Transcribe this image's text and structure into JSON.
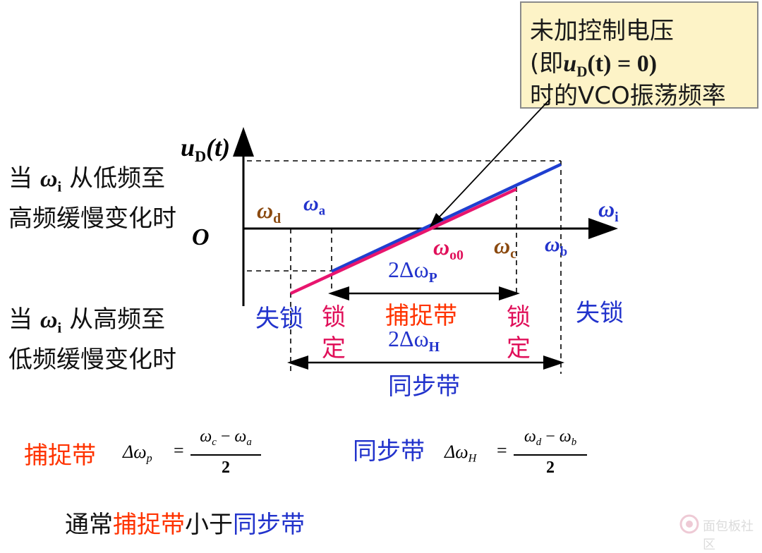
{
  "callout": {
    "line1": "未加控制电压",
    "line2_open": "(即",
    "line2_u": "u",
    "line2_sub": "D",
    "line2_t": "(t) = 0)",
    "line3": "时的VCO振荡频率"
  },
  "axes": {
    "y_label_u": "u",
    "y_label_sub": "D",
    "y_label_rest": "(t)",
    "x_label_omega": "ω",
    "x_label_sub": "i",
    "origin": "O"
  },
  "left_text": {
    "up_1a": "当 ",
    "up_omega": "ω",
    "up_sub": "i",
    "up_1b": " 从低频至",
    "up_2": "高频缓慢变化时",
    "down_1a": "当 ",
    "down_omega": "ω",
    "down_sub": "i",
    "down_1b": " 从高频至",
    "down_2": "低频缓慢变化时"
  },
  "points": {
    "d_omega": "ω",
    "d_sub": "d",
    "a_omega": "ω",
    "a_sub": "a",
    "o0_omega": "ω",
    "o0_sub": "o0",
    "c_omega": "ω",
    "c_sub": "c",
    "b_omega": "ω",
    "b_sub": "b"
  },
  "bands": {
    "capture_width": "2Δω",
    "capture_width_sub": "P",
    "capture_name": "捕捉带",
    "hold_width": "2Δω",
    "hold_width_sub": "H",
    "hold_name": "同步带",
    "unlock_left": "失锁",
    "unlock_right": "失锁",
    "lock_char1": "锁",
    "lock_char2": "定"
  },
  "formulas": {
    "capture_label": "捕捉带",
    "capture_lhs": "Δω",
    "capture_lhs_sub": "p",
    "capture_num_a": "ω",
    "capture_num_a_sub": "c",
    "capture_minus": " − ",
    "capture_num_b": "ω",
    "capture_num_b_sub": "a",
    "capture_den": "2",
    "hold_label": "同步带",
    "hold_lhs": "Δω",
    "hold_lhs_sub": "H",
    "hold_num_a": "ω",
    "hold_num_a_sub": "d",
    "hold_minus": " − ",
    "hold_num_b": "ω",
    "hold_num_b_sub": "b",
    "hold_den": "2",
    "equals": "="
  },
  "conclusion": {
    "part1": "通常",
    "part2": "捕捉带",
    "part3": "小于",
    "part4": "同步带"
  },
  "watermark": {
    "text": "面包板社区"
  },
  "colors": {
    "blue_line": "#1f3fd0",
    "pink_line": "#e8156e",
    "blue_text": "#2233cc",
    "red_text": "#ff3300",
    "pink_text": "#e0105a",
    "brown_text": "#8b4a10",
    "callout_bg": "#fdf3c7"
  }
}
